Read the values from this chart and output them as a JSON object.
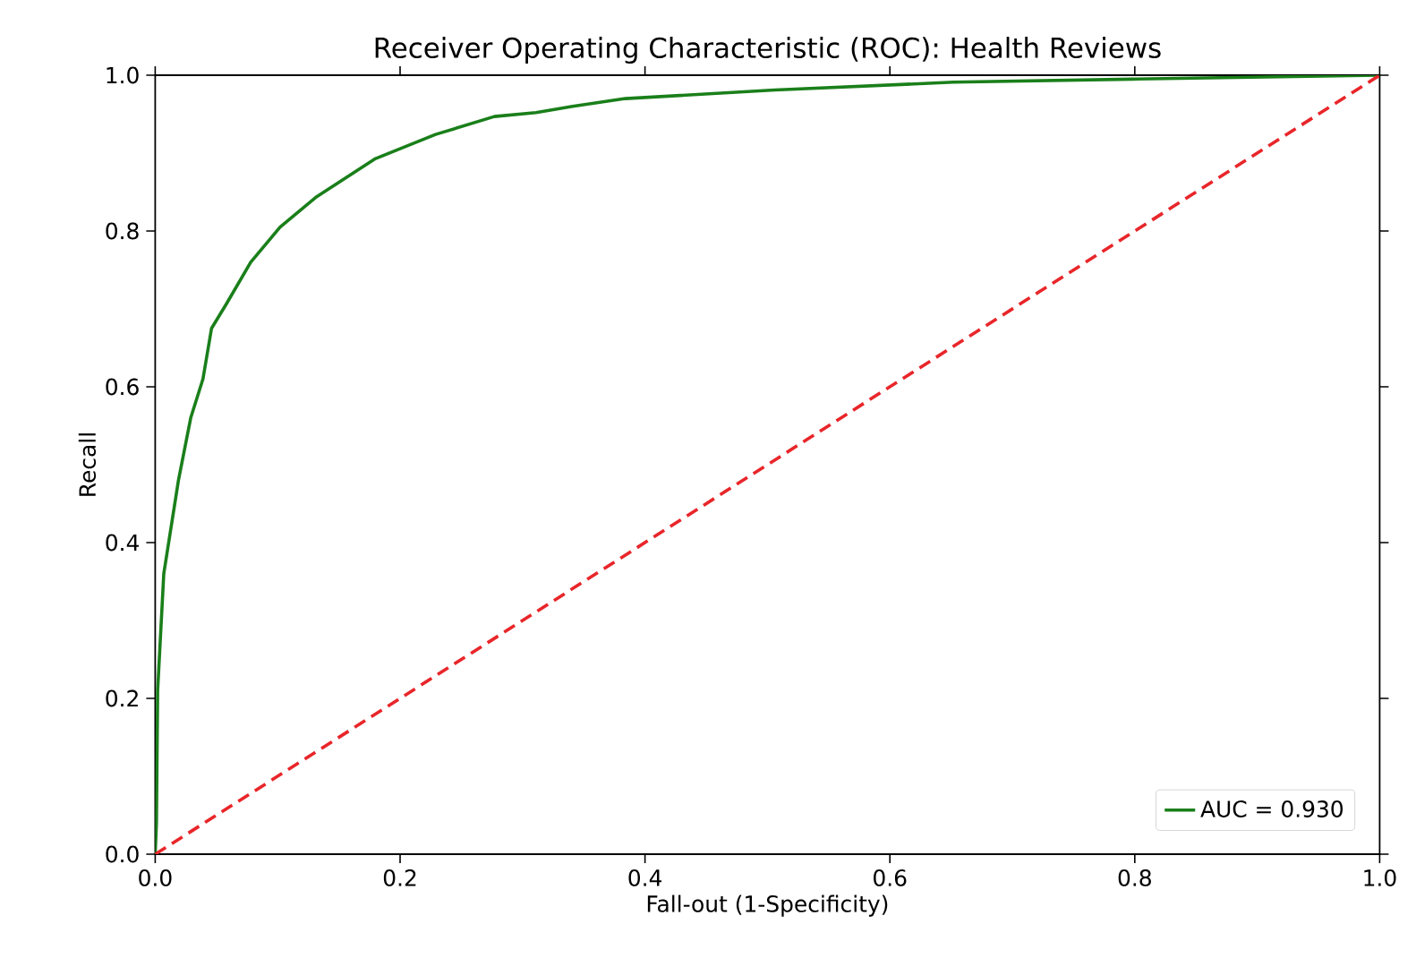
{
  "chart_data": {
    "type": "line",
    "title": "Receiver Operating Characteristic (ROC): Health Reviews",
    "xlabel": "Fall-out (1-Specificity)",
    "ylabel": "Recall",
    "xlim": [
      0.0,
      1.0
    ],
    "ylim": [
      0.0,
      1.0
    ],
    "xticks": [
      {
        "value": 0,
        "label": "0.0"
      },
      0.2,
      0.4,
      0.6,
      0.8,
      {
        "value": 1,
        "label": "1.0"
      }
    ],
    "yticks": [
      {
        "value": 0,
        "label": "0.0"
      },
      0.2,
      0.4,
      0.6,
      0.8,
      {
        "value": 1,
        "label": "1.0"
      }
    ],
    "legend": "bottom right",
    "marker": "none",
    "grid": false,
    "series": [
      {
        "name": "AUC = 0.930",
        "color": "#1a7f1a",
        "line_style": "solid",
        "x": [
          0,
          0.001,
          0.002,
          0.007,
          0.019,
          0.029,
          0.039,
          0.046,
          0.058,
          0.078,
          0.102,
          0.131,
          0.18,
          0.229,
          0.277,
          0.311,
          0.341,
          0.384,
          0.506,
          0.652,
          0.798,
          1.0
        ],
        "values": [
          0,
          0.04,
          0.21,
          0.36,
          0.48,
          0.56,
          0.61,
          0.675,
          0.706,
          0.76,
          0.805,
          0.843,
          0.893,
          0.924,
          0.947,
          0.952,
          0.96,
          0.97,
          0.981,
          0.991,
          0.995,
          1.0
        ]
      },
      {
        "color": "#e8262a",
        "line_style": "dashed",
        "x": [
          0,
          1
        ],
        "values": [
          0,
          1
        ]
      }
    ]
  }
}
